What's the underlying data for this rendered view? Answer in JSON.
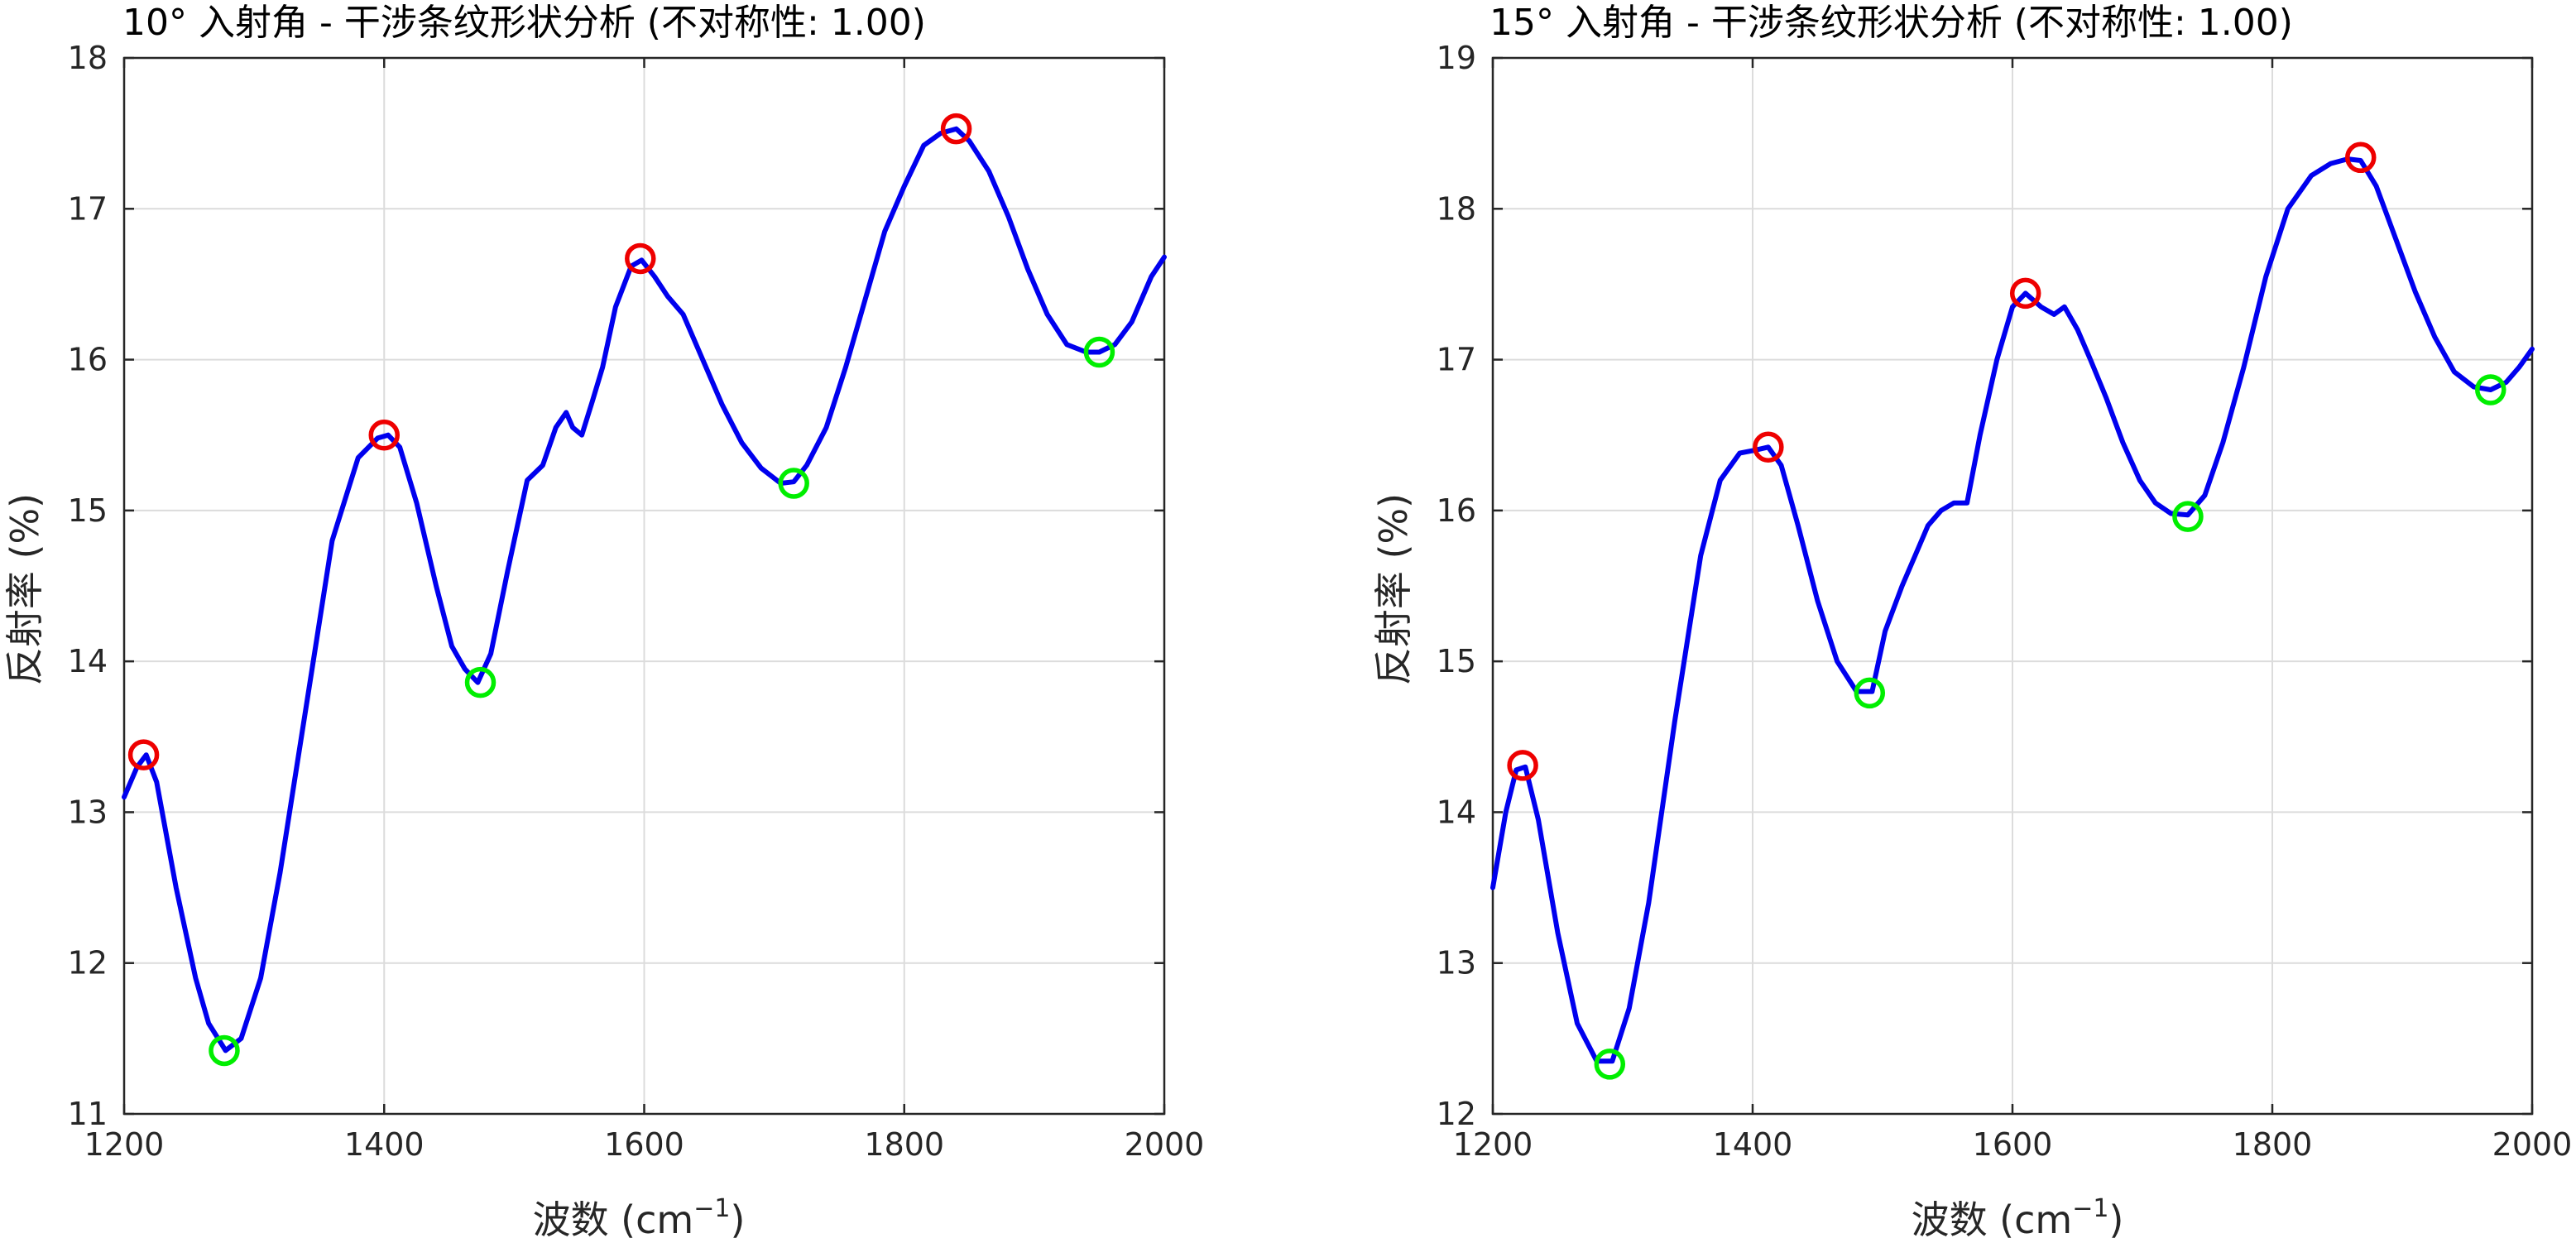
{
  "chart_data": [
    {
      "type": "line",
      "title": "10° 入射角 - 干涉条纹形状分析 (不对称性: 1.00)",
      "xlabel": "波数 (cm",
      "xlabel_sup": "−1",
      "xlabel_close": ")",
      "ylabel": "反射率 (%)",
      "xlim": [
        1200,
        2000
      ],
      "ylim": [
        11,
        18
      ],
      "xticks": [
        1200,
        1400,
        1600,
        1800,
        2000
      ],
      "yticks": [
        11,
        12,
        13,
        14,
        15,
        16,
        17,
        18
      ],
      "grid": true,
      "colors": {
        "line": "#0000ee",
        "peaks": "#ee0000",
        "valleys": "#00ee00"
      },
      "series": [
        {
          "x": [
            1200,
            1210,
            1217,
            1225,
            1240,
            1255,
            1265,
            1278,
            1290,
            1305,
            1320,
            1340,
            1360,
            1380,
            1395,
            1403,
            1412,
            1425,
            1440,
            1452,
            1462,
            1472,
            1482,
            1495,
            1510,
            1522,
            1532,
            1540,
            1545,
            1552,
            1560,
            1568,
            1578,
            1590,
            1598,
            1608,
            1618,
            1630,
            1645,
            1660,
            1675,
            1690,
            1705,
            1715,
            1725,
            1740,
            1755,
            1770,
            1785,
            1800,
            1815,
            1828,
            1840,
            1850,
            1865,
            1880,
            1895,
            1910,
            1925,
            1940,
            1950,
            1962,
            1975,
            1990,
            2000
          ],
          "y": [
            13.1,
            13.3,
            13.38,
            13.2,
            12.5,
            11.9,
            11.6,
            11.42,
            11.5,
            11.9,
            12.6,
            13.7,
            14.8,
            15.35,
            15.48,
            15.5,
            15.42,
            15.05,
            14.5,
            14.1,
            13.95,
            13.86,
            14.05,
            14.6,
            15.2,
            15.3,
            15.55,
            15.65,
            15.55,
            15.5,
            15.72,
            15.95,
            16.35,
            16.62,
            16.66,
            16.55,
            16.42,
            16.3,
            16.0,
            15.7,
            15.45,
            15.28,
            15.18,
            15.19,
            15.3,
            15.55,
            15.95,
            16.4,
            16.85,
            17.15,
            17.42,
            17.5,
            17.53,
            17.45,
            17.25,
            16.95,
            16.6,
            16.3,
            16.1,
            16.05,
            16.05,
            16.1,
            16.25,
            16.55,
            16.68
          ]
        }
      ],
      "peaks": [
        [
          1215,
          13.38
        ],
        [
          1400,
          15.5
        ],
        [
          1597,
          16.67
        ],
        [
          1840,
          17.53
        ]
      ],
      "valleys": [
        [
          1277,
          11.42
        ],
        [
          1474,
          13.86
        ],
        [
          1715,
          15.18
        ],
        [
          1950,
          16.05
        ]
      ]
    },
    {
      "type": "line",
      "title": "15° 入射角 - 干涉条纹形状分析 (不对称性: 1.00)",
      "xlabel": "波数 (cm",
      "xlabel_sup": "−1",
      "xlabel_close": ")",
      "ylabel": "反射率 (%)",
      "xlim": [
        1200,
        2000
      ],
      "ylim": [
        12,
        19
      ],
      "xticks": [
        1200,
        1400,
        1600,
        1800,
        2000
      ],
      "yticks": [
        12,
        13,
        14,
        15,
        16,
        17,
        18,
        19
      ],
      "grid": true,
      "colors": {
        "line": "#0000ee",
        "peaks": "#ee0000",
        "valleys": "#00ee00"
      },
      "series": [
        {
          "x": [
            1200,
            1210,
            1218,
            1225,
            1235,
            1250,
            1265,
            1280,
            1292,
            1305,
            1320,
            1340,
            1360,
            1375,
            1390,
            1402,
            1412,
            1422,
            1435,
            1450,
            1465,
            1480,
            1492,
            1502,
            1515,
            1525,
            1535,
            1545,
            1555,
            1565,
            1575,
            1588,
            1600,
            1610,
            1622,
            1632,
            1640,
            1650,
            1660,
            1672,
            1685,
            1698,
            1710,
            1722,
            1735,
            1748,
            1762,
            1778,
            1795,
            1812,
            1830,
            1845,
            1858,
            1868,
            1880,
            1895,
            1910,
            1925,
            1940,
            1955,
            1968,
            1980,
            1990,
            2000
          ],
          "y": [
            13.5,
            14.0,
            14.28,
            14.3,
            13.95,
            13.2,
            12.6,
            12.35,
            12.35,
            12.7,
            13.4,
            14.6,
            15.7,
            16.2,
            16.38,
            16.4,
            16.42,
            16.3,
            15.9,
            15.4,
            15.0,
            14.8,
            14.8,
            15.2,
            15.5,
            15.7,
            15.9,
            16.0,
            16.05,
            16.05,
            16.5,
            17.0,
            17.35,
            17.44,
            17.35,
            17.3,
            17.35,
            17.2,
            17.0,
            16.75,
            16.45,
            16.2,
            16.05,
            15.98,
            15.97,
            16.1,
            16.45,
            16.95,
            17.55,
            18.0,
            18.22,
            18.3,
            18.33,
            18.32,
            18.15,
            17.8,
            17.45,
            17.15,
            16.92,
            16.82,
            16.8,
            16.85,
            16.95,
            17.07
          ]
        }
      ],
      "peaks": [
        [
          1223,
          14.31
        ],
        [
          1412,
          16.42
        ],
        [
          1610,
          17.44
        ],
        [
          1868,
          18.34
        ]
      ],
      "valleys": [
        [
          1290,
          12.33
        ],
        [
          1490,
          14.79
        ],
        [
          1735,
          15.96
        ],
        [
          1968,
          16.8
        ]
      ]
    }
  ]
}
